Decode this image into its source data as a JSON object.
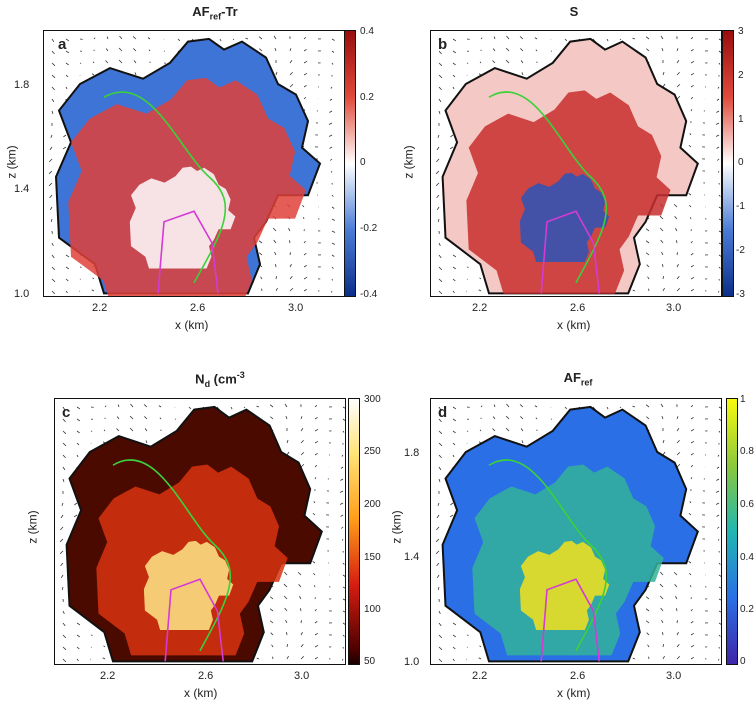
{
  "panels": [
    {
      "letter": "a",
      "title_main": "AF",
      "title_sub": "ref",
      "title_tail": "-Tr",
      "colorbar": [
        "0.4",
        "0.2",
        "0",
        "-0.2",
        "-0.4"
      ],
      "cmap": "diverging"
    },
    {
      "letter": "b",
      "title_main": "S",
      "title_sub": "",
      "title_tail": "",
      "colorbar": [
        "3",
        "2",
        "1",
        "0",
        "-1",
        "-2",
        "-3"
      ],
      "cmap": "diverging"
    },
    {
      "letter": "c",
      "title_main": "N",
      "title_sub": "d",
      "title_tail": " (cm",
      "title_sup": "-3",
      "colorbar": [
        "300",
        "250",
        "200",
        "150",
        "100",
        "50"
      ],
      "cmap": "hot"
    },
    {
      "letter": "d",
      "title_main": "AF",
      "title_sub": "ref",
      "title_tail": "",
      "colorbar": [
        "1",
        "0.8",
        "0.6",
        "0.4",
        "0.2",
        "0"
      ],
      "cmap": "parula"
    }
  ],
  "axes": {
    "xlabel": "x (km)",
    "ylabel": "z (km)",
    "xticks": [
      "2.2",
      "2.6",
      "3.0"
    ],
    "yticks": [
      "1.8",
      "1.4",
      "1.0"
    ]
  },
  "colors": {
    "diverging_low": "#0b2f8a",
    "diverging_mid": "#ffffff",
    "diverging_high": "#9a0d0d",
    "contour_green": "#3ad13a",
    "contour_magenta": "#d43ad4"
  }
}
